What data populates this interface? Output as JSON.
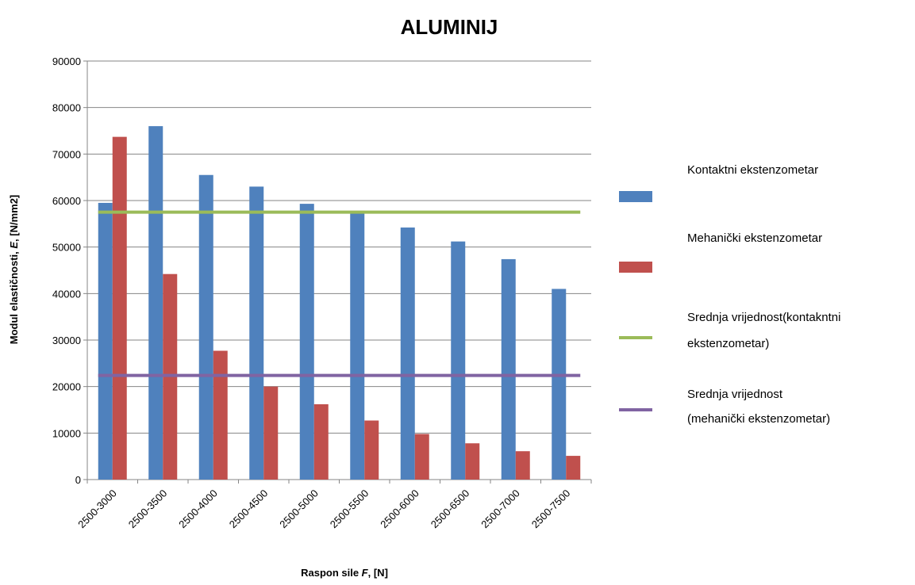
{
  "chart_data": {
    "type": "bar",
    "title": "ALUMINIJ",
    "xlabel_main": "Raspon sile ",
    "xlabel_var": "F",
    "xlabel_unit": ", [N]",
    "ylabel_main": "Modul elastičnosti, ",
    "ylabel_var": "E",
    "ylabel_unit": ", [N/mm2]",
    "ylim": [
      0,
      90000
    ],
    "yticks": [
      0,
      10000,
      20000,
      30000,
      40000,
      50000,
      60000,
      70000,
      80000,
      90000
    ],
    "grid": true,
    "legend_position": "right",
    "categories": [
      "2500-3000",
      "2500-3500",
      "2500-4000",
      "2500-4500",
      "2500-5000",
      "2500-5500",
      "2500-6000",
      "2500-6500",
      "2500-7000",
      "2500-7500"
    ],
    "series": [
      {
        "name": "Kontaktni ekstenzometar",
        "type": "bar",
        "color": "#4F81BD",
        "values": [
          59500,
          76000,
          65500,
          63000,
          59300,
          57800,
          54200,
          51200,
          47400,
          41000
        ]
      },
      {
        "name": "Mehanički ekstenzometar",
        "type": "bar",
        "color": "#C0504D",
        "values": [
          73700,
          44200,
          27700,
          20000,
          16200,
          12700,
          9800,
          7800,
          6100,
          5100
        ]
      }
    ],
    "lines": [
      {
        "name_lines": [
          "Srednja vrijednost(kontakntni",
          "ekstenzometar)"
        ],
        "color": "#9BBB59",
        "value": 57500
      },
      {
        "name_lines": [
          "Srednja vrijednost",
          "(mehanički ekstenzometar)"
        ],
        "color": "#8064A2",
        "value": 22400
      }
    ]
  }
}
